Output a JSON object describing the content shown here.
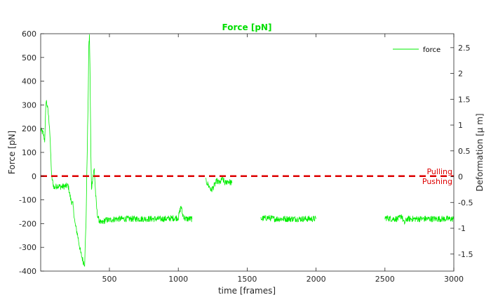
{
  "chart_data": {
    "type": "line",
    "title": "Force [pN]",
    "xlabel": "time [frames]",
    "ylabel": "Force [pN]",
    "y2label": "Deformation [μ m]",
    "xlim": [
      1,
      3000
    ],
    "ylim": [
      -400,
      600
    ],
    "y2lim": [
      -1.83,
      2.77
    ],
    "x_ticks": [
      500,
      1000,
      1500,
      2000,
      2500,
      3000
    ],
    "y_ticks": [
      -400,
      -300,
      -200,
      -100,
      0,
      100,
      200,
      300,
      400,
      500,
      600
    ],
    "y2_ticks": [
      -1.5,
      -1,
      -0.5,
      0,
      0.5,
      1,
      1.5,
      2,
      2.5
    ],
    "grid": false,
    "legend_position": "top-right",
    "colors": {
      "series": "#00ee00",
      "title": "#00dd00",
      "reference": "#dd0000",
      "axis": "#262626"
    },
    "series": [
      {
        "name": "force",
        "x": [
          1,
          20,
          30,
          40,
          45,
          55,
          65,
          75,
          80,
          90,
          100,
          120,
          150,
          200,
          220,
          235,
          250,
          270,
          290,
          310,
          320,
          330,
          340,
          345,
          350,
          355,
          360,
          365,
          370,
          380,
          390,
          400,
          410,
          420,
          440,
          470,
          500,
          550,
          600,
          700,
          800,
          900,
          1000,
          1020,
          1030,
          1050,
          1100,
          null,
          1200,
          1220,
          1240,
          1260,
          1280,
          1300,
          1320,
          1340,
          1360,
          1390,
          null,
          1600,
          1650,
          1700,
          1800,
          1900,
          2000,
          null,
          2500,
          2550,
          2600,
          2620,
          2640,
          2660,
          2700,
          2800,
          2900,
          3000
        ],
        "y": [
          195,
          180,
          150,
          320,
          310,
          270,
          210,
          80,
          0,
          -30,
          -50,
          -40,
          -45,
          -40,
          -100,
          -120,
          -200,
          -250,
          -320,
          -360,
          -370,
          -200,
          150,
          300,
          540,
          590,
          400,
          100,
          -50,
          0,
          30,
          -80,
          -150,
          -180,
          -200,
          -185,
          -185,
          -180,
          -180,
          -180,
          -180,
          -180,
          -175,
          -125,
          -160,
          -180,
          -180,
          null,
          -20,
          -40,
          -60,
          -40,
          -20,
          -30,
          -10,
          -30,
          -20,
          -30,
          null,
          -180,
          -175,
          -180,
          -180,
          -180,
          -180,
          null,
          -175,
          -180,
          -180,
          -165,
          -200,
          -180,
          -180,
          -180,
          -180,
          -180
        ]
      }
    ],
    "reference_line": {
      "y": 0,
      "style": "dashed"
    },
    "annotations": [
      "Pulling",
      "Pushing"
    ]
  }
}
